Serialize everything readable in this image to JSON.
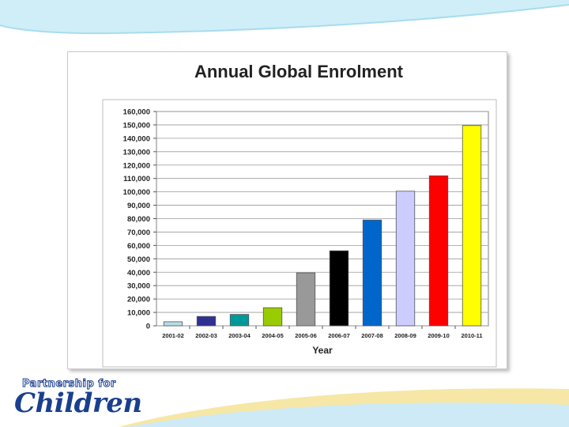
{
  "slide": {
    "logo": {
      "line1": "Partnership for",
      "line2": "Children"
    },
    "colors": {
      "top_wave": "#cfeef8",
      "bottom_wave_blue": "#cdeaf6",
      "bottom_wave_yellow": "#f6e7a6",
      "logo_blue": "#1b3f8f"
    }
  },
  "chart_data": {
    "type": "bar",
    "title": "Annual Global Enrolment",
    "xlabel": "Year",
    "ylabel": "",
    "ylim": [
      0,
      160000
    ],
    "ytick_step": 10000,
    "yticks": [
      "0",
      "10,000",
      "20,000",
      "30,000",
      "40,000",
      "50,000",
      "60,000",
      "70,000",
      "80,000",
      "90,000",
      "100,000",
      "110,000",
      "120,000",
      "130,000",
      "140,000",
      "150,000",
      "160,000"
    ],
    "categories": [
      "2001-02",
      "2002-03",
      "2003-04",
      "2004-05",
      "2005-06",
      "2006-07",
      "2007-08",
      "2008-09",
      "2009-10",
      "2010-11"
    ],
    "values": [
      3000,
      7000,
      8500,
      13500,
      39500,
      56000,
      79000,
      100500,
      112000,
      149500
    ],
    "bar_colors": [
      "#b7dce8",
      "#2e3192",
      "#009999",
      "#99cc00",
      "#999999",
      "#000000",
      "#0066cc",
      "#ccccff",
      "#ff0000",
      "#ffff00"
    ],
    "grid": true,
    "legend": "none"
  }
}
